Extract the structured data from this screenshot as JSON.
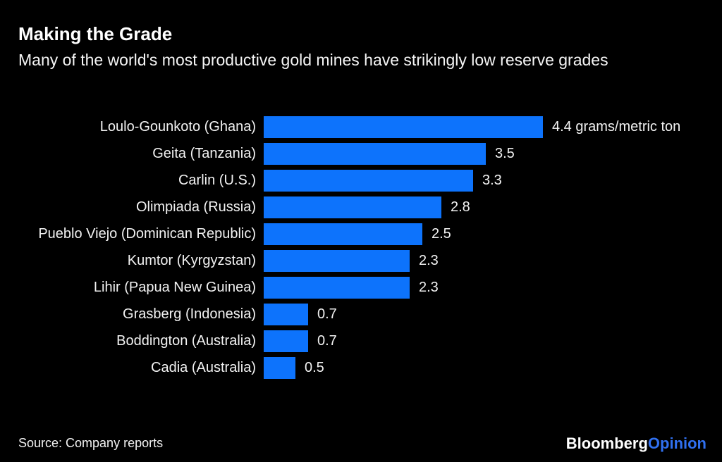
{
  "header": {
    "title": "Making the Grade",
    "subtitle": "Many of the world's most productive gold mines have strikingly low reserve grades"
  },
  "chart_data": {
    "type": "bar",
    "orientation": "horizontal",
    "title": "Making the Grade",
    "subtitle": "Many of the world's most productive gold mines have strikingly low reserve grades",
    "unit": "grams/metric ton",
    "categories": [
      "Loulo-Gounkoto (Ghana)",
      "Geita (Tanzania)",
      "Carlin (U.S.)",
      "Olimpiada (Russia)",
      "Pueblo Viejo (Dominican Republic)",
      "Kumtor (Kyrgyzstan)",
      "Lihir (Papua New Guinea)",
      "Grasberg (Indonesia)",
      "Boddington (Australia)",
      "Cadia (Australia)"
    ],
    "values": [
      4.4,
      3.5,
      3.3,
      2.8,
      2.5,
      2.3,
      2.3,
      0.7,
      0.7,
      0.5
    ],
    "value_labels": [
      "4.4 grams/metric ton",
      "3.5",
      "3.3",
      "2.8",
      "2.5",
      "2.3",
      "2.3",
      "0.7",
      "0.7",
      "0.5"
    ],
    "xlim": [
      0,
      4.4
    ],
    "grid": false,
    "legend": false,
    "bar_color": "#0d73fc",
    "background_color": "#000000",
    "text_color": "#ffffff"
  },
  "footer": {
    "source": "Source: Company reports",
    "brand": {
      "bloomberg": "Bloomberg",
      "opinion": "Opinion",
      "opinion_color": "#3070f0"
    }
  }
}
